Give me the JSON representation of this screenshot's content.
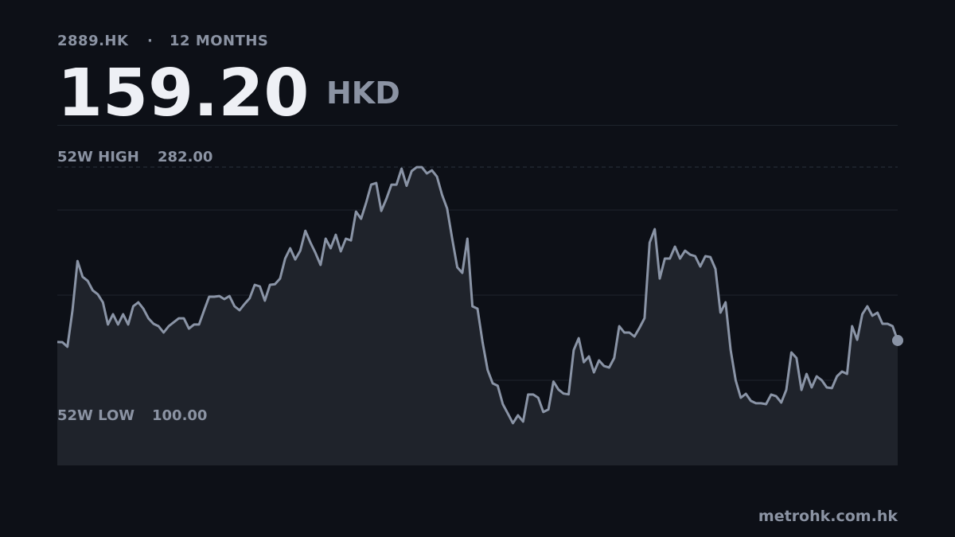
{
  "header": {
    "ticker": "2889.HK",
    "period": "12 MONTHS",
    "currency": "HKD"
  },
  "footer": {
    "site": "metrohk.com.hk"
  },
  "chart_data": {
    "type": "area",
    "price": {
      "value": 159.2,
      "label": "159.20"
    },
    "high": {
      "name": "52W HIGH",
      "value": 282,
      "label": "282.00"
    },
    "low": {
      "name": "52W LOW",
      "value": 100,
      "label": "100.00"
    },
    "ylim": [
      70.7,
      311.9
    ],
    "color": "#8a94a6",
    "values": [
      158.1,
      158,
      154.7,
      180.6,
      215.5,
      204.3,
      201.4,
      194.7,
      191.9,
      186.2,
      170.5,
      177.8,
      170.5,
      177.8,
      170.5,
      183.4,
      186.2,
      181.7,
      174.9,
      171,
      169.3,
      164.8,
      169.3,
      172.1,
      174.9,
      174.9,
      167.6,
      170.5,
      170.5,
      180.6,
      190.2,
      190.2,
      190.7,
      188.5,
      190.7,
      183.4,
      180.6,
      185.1,
      189.1,
      198.6,
      197.5,
      187.4,
      198.6,
      199.1,
      203.1,
      217.2,
      224.5,
      216.6,
      222.8,
      236.9,
      228.5,
      221.2,
      212.7,
      231.3,
      224.5,
      234.1,
      222.3,
      231.3,
      230.1,
      250.5,
      245.4,
      256.6,
      269.6,
      270.7,
      251,
      259.5,
      269.6,
      269.6,
      280.9,
      268.8,
      279.2,
      282,
      282,
      277.5,
      279.7,
      275.2,
      262.3,
      252.7,
      231.3,
      211,
      207.1,
      231.3,
      183.4,
      181.7,
      157.9,
      138.3,
      128.8,
      127.1,
      114.1,
      107.4,
      100.6,
      106.2,
      101.7,
      120.9,
      120.9,
      118.6,
      108.5,
      110.3,
      130.1,
      124.4,
      121.6,
      121,
      152.4,
      160.8,
      143.8,
      147.9,
      136.6,
      145.1,
      141.1,
      140,
      146.8,
      169.3,
      164.8,
      164.8,
      162,
      168.2,
      175,
      228.5,
      238.1,
      203.1,
      217.2,
      217.2,
      225.7,
      217.2,
      222.8,
      220,
      218.9,
      211.6,
      218.9,
      218.3,
      209.9,
      178.9,
      186.2,
      152.4,
      131,
      118.6,
      121.4,
      116.4,
      114.7,
      114.7,
      114.1,
      120.9,
      119.7,
      115.2,
      124.2,
      150.7,
      146.8,
      124.2,
      135.5,
      125.9,
      133.8,
      131,
      125.9,
      125.4,
      133.8,
      137.2,
      135.5,
      169.3,
      159.7,
      177.8,
      183.4,
      176.7,
      178.9,
      171,
      171,
      169.3,
      159.2
    ]
  }
}
